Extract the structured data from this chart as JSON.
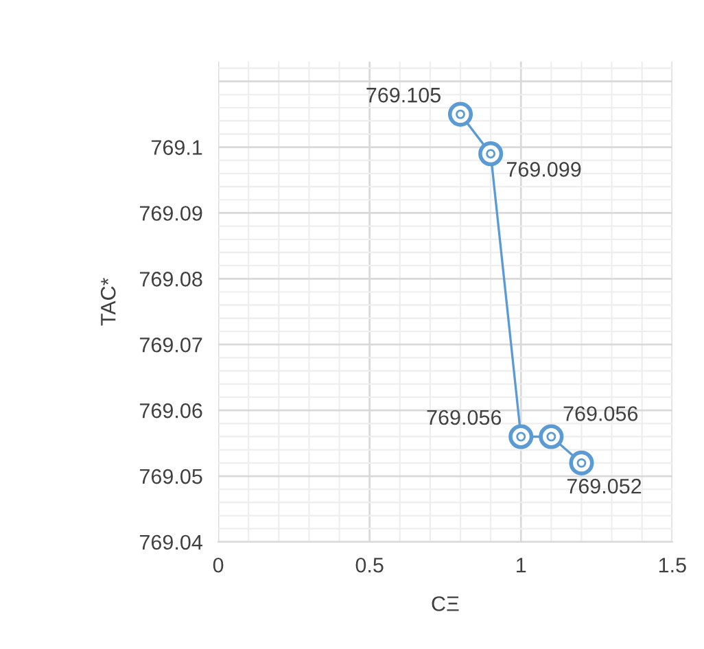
{
  "chart_data": {
    "type": "line",
    "xlabel": "CΞ",
    "ylabel": "TAC*",
    "x": [
      0.8,
      0.9,
      1.0,
      1.1,
      1.2
    ],
    "series": [
      {
        "color": "#5b9bd5",
        "values": [
          769.105,
          769.099,
          769.056,
          769.056,
          769.052
        ]
      }
    ],
    "value_labels": [
      "769.105",
      "769.099",
      "769.056",
      "769.056",
      "769.052"
    ],
    "xlim": [
      0,
      1.5
    ],
    "xticks": [
      0,
      0.5,
      1,
      1.5
    ],
    "ylim": [
      769.04,
      769.113
    ],
    "yticks": [
      769.04,
      769.05,
      769.06,
      769.07,
      769.08,
      769.09,
      769.1
    ],
    "grid": true,
    "marker": "circle",
    "line_style": "solid"
  }
}
